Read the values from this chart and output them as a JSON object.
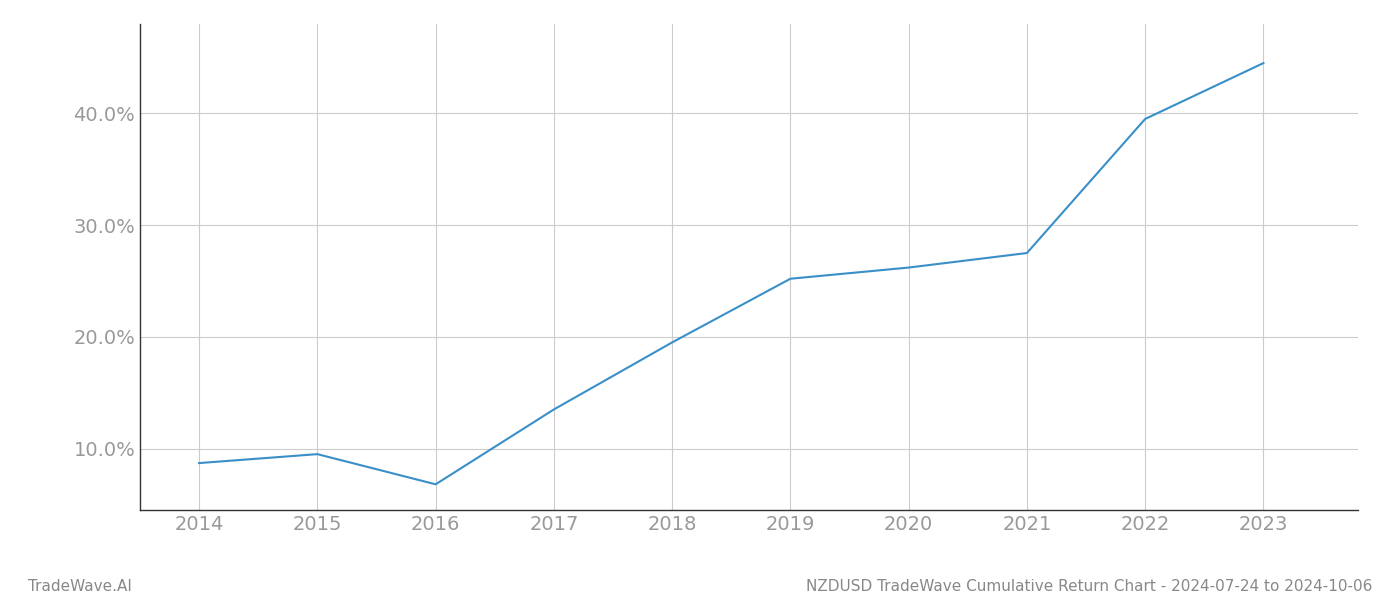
{
  "x_years": [
    2014,
    2015,
    2016,
    2017,
    2018,
    2019,
    2020,
    2021,
    2022,
    2023
  ],
  "y_values": [
    8.7,
    9.5,
    6.8,
    13.5,
    19.5,
    25.2,
    26.2,
    27.5,
    39.5,
    44.5
  ],
  "line_color": "#3a8fc9",
  "line_width": 1.5,
  "bg_color": "#ffffff",
  "grid_color": "#cccccc",
  "tick_label_color": "#999999",
  "yticks": [
    10.0,
    20.0,
    30.0,
    40.0
  ],
  "xlim": [
    2013.5,
    2023.8
  ],
  "ylim": [
    4.5,
    48.0
  ],
  "footer_left": "TradeWave.AI",
  "footer_right": "NZDUSD TradeWave Cumulative Return Chart - 2024-07-24 to 2024-10-06",
  "footer_fontsize": 11,
  "footer_color": "#888888",
  "tick_fontsize": 14,
  "spine_color": "#333333"
}
